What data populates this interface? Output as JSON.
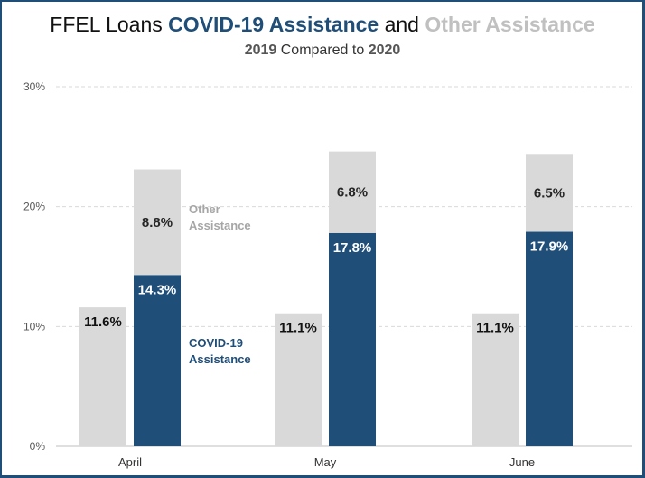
{
  "title": {
    "prefix": "FFEL Loans ",
    "covid": "COVID-19 Assistance",
    "middle": " and ",
    "other": "Other Assistance"
  },
  "subtitle": {
    "year1": "2019",
    "middle": " Compared to ",
    "year2": "2020"
  },
  "colors": {
    "covid": "#1f4e79",
    "other": "#d9d9d9",
    "baseline": "#d9d9d9",
    "other_label": "#a6a6a6"
  },
  "annotations": {
    "other": [
      "Other",
      "Assistance"
    ],
    "covid": [
      "COVID-19",
      "Assistance"
    ]
  },
  "chart_data": {
    "type": "bar",
    "categories": [
      "April",
      "May",
      "June"
    ],
    "ylim": [
      0,
      30
    ],
    "yticks": [
      0,
      10,
      20,
      30
    ],
    "ytick_labels": [
      "0%",
      "10%",
      "20%",
      "30%"
    ],
    "grid": true,
    "series": [
      {
        "values": [
          11.6,
          11.1,
          11.1
        ],
        "labels": [
          "11.6%",
          "11.1%",
          "11.1%"
        ]
      },
      {
        "name": "COVID-19 Assistance",
        "values": [
          14.3,
          17.8,
          17.9
        ],
        "labels": [
          "14.3%",
          "17.8%",
          "17.9%"
        ]
      },
      {
        "name": "Other Assistance",
        "values": [
          8.8,
          6.8,
          6.5
        ],
        "labels": [
          "8.8%",
          "6.8%",
          "6.5%"
        ]
      }
    ]
  }
}
